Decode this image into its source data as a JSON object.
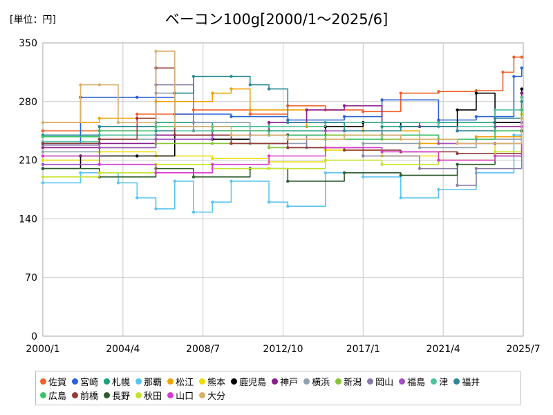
{
  "chart_data": {
    "type": "line",
    "title": "ベーコン100g[2000/1～2025/6]",
    "unit_label": "[単位：円]",
    "xlim": [
      "2000/1",
      "2025/7"
    ],
    "x_ticks": [
      "2000/1",
      "2004/4",
      "2008/7",
      "2012/10",
      "2017/1",
      "2021/4",
      "2025/7"
    ],
    "ylim": [
      0,
      350
    ],
    "y_ticks": [
      0,
      70,
      140,
      210,
      280,
      350
    ],
    "grid": true,
    "legend_position": "bottom",
    "series": [
      {
        "name": "佐賀",
        "color": "#f0602a",
        "points": [
          [
            "2000/1",
            245
          ],
          [
            "2003/1",
            245
          ],
          [
            "2005/1",
            265
          ],
          [
            "2008/1",
            270
          ],
          [
            "2011/1",
            265
          ],
          [
            "2013/1",
            275
          ],
          [
            "2015/1",
            270
          ],
          [
            "2017/1",
            268
          ],
          [
            "2019/1",
            290
          ],
          [
            "2021/1",
            292
          ],
          [
            "2023/1",
            293
          ],
          [
            "2024/6",
            315
          ],
          [
            "2025/1",
            333
          ],
          [
            "2025/6",
            333
          ]
        ]
      },
      {
        "name": "宮崎",
        "color": "#2a62d8",
        "points": [
          [
            "2000/1",
            230
          ],
          [
            "2002/1",
            285
          ],
          [
            "2005/1",
            285
          ],
          [
            "2007/1",
            265
          ],
          [
            "2010/1",
            262
          ],
          [
            "2013/1",
            258
          ],
          [
            "2016/1",
            262
          ],
          [
            "2018/1",
            282
          ],
          [
            "2021/1",
            258
          ],
          [
            "2023/1",
            262
          ],
          [
            "2025/1",
            310
          ],
          [
            "2025/6",
            320
          ]
        ]
      },
      {
        "name": "札幌",
        "color": "#1e9e7b",
        "points": [
          [
            "2000/1",
            240
          ],
          [
            "2003/1",
            250
          ],
          [
            "2006/1",
            255
          ],
          [
            "2009/1",
            250
          ],
          [
            "2012/1",
            245
          ],
          [
            "2015/1",
            240
          ],
          [
            "2018/1",
            250
          ],
          [
            "2021/1",
            255
          ],
          [
            "2024/1",
            255
          ],
          [
            "2025/6",
            290
          ]
        ]
      },
      {
        "name": "那覇",
        "color": "#5bc4f0",
        "points": [
          [
            "2000/1",
            183
          ],
          [
            "2002/1",
            195
          ],
          [
            "2004/1",
            183
          ],
          [
            "2005/1",
            165
          ],
          [
            "2006/1",
            152
          ],
          [
            "2007/1",
            185
          ],
          [
            "2008/1",
            148
          ],
          [
            "2009/1",
            160
          ],
          [
            "2010/1",
            185
          ],
          [
            "2012/1",
            160
          ],
          [
            "2013/1",
            155
          ],
          [
            "2015/1",
            195
          ],
          [
            "2017/1",
            190
          ],
          [
            "2019/1",
            165
          ],
          [
            "2021/1",
            175
          ],
          [
            "2023/1",
            195
          ],
          [
            "2025/1",
            240
          ],
          [
            "2025/6",
            250
          ]
        ]
      },
      {
        "name": "松江",
        "color": "#f0a20a",
        "points": [
          [
            "2000/1",
            255
          ],
          [
            "2003/1",
            260
          ],
          [
            "2006/1",
            280
          ],
          [
            "2009/1",
            290
          ],
          [
            "2010/1",
            295
          ],
          [
            "2011/1",
            270
          ],
          [
            "2014/1",
            250
          ],
          [
            "2017/1",
            245
          ],
          [
            "2020/1",
            230
          ],
          [
            "2023/1",
            238
          ],
          [
            "2025/6",
            285
          ]
        ]
      },
      {
        "name": "熊本",
        "color": "#ecdc0c",
        "points": [
          [
            "2000/1",
            210
          ],
          [
            "2003/1",
            220
          ],
          [
            "2006/1",
            215
          ],
          [
            "2009/1",
            212
          ],
          [
            "2012/1",
            208
          ],
          [
            "2015/1",
            222
          ],
          [
            "2018/1",
            215
          ],
          [
            "2021/1",
            210
          ],
          [
            "2024/1",
            230
          ],
          [
            "2025/6",
            265
          ]
        ]
      },
      {
        "name": "鹿児島",
        "color": "#000000",
        "points": [
          [
            "2000/1",
            200
          ],
          [
            "2002/1",
            215
          ],
          [
            "2005/1",
            215
          ],
          [
            "2007/1",
            240
          ],
          [
            "2009/1",
            235
          ],
          [
            "2011/1",
            230
          ],
          [
            "2013/1",
            240
          ],
          [
            "2015/1",
            250
          ],
          [
            "2017/1",
            255
          ],
          [
            "2019/1",
            250
          ],
          [
            "2021/1",
            250
          ],
          [
            "2022/1",
            270
          ],
          [
            "2023/1",
            290
          ],
          [
            "2024/1",
            255
          ],
          [
            "2025/6",
            295
          ]
        ]
      },
      {
        "name": "神戸",
        "color": "#8a1d8a",
        "points": [
          [
            "2000/1",
            225
          ],
          [
            "2003/1",
            230
          ],
          [
            "2006/1",
            240
          ],
          [
            "2009/1",
            245
          ],
          [
            "2012/1",
            255
          ],
          [
            "2014/1",
            270
          ],
          [
            "2016/1",
            275
          ],
          [
            "2018/1",
            255
          ],
          [
            "2020/1",
            250
          ],
          [
            "2022/1",
            245
          ],
          [
            "2024/1",
            250
          ],
          [
            "2025/6",
            290
          ]
        ]
      },
      {
        "name": "横浜",
        "color": "#8fa0ad",
        "points": [
          [
            "2000/1",
            220
          ],
          [
            "2003/1",
            235
          ],
          [
            "2006/1",
            290
          ],
          [
            "2008/1",
            255
          ],
          [
            "2011/1",
            230
          ],
          [
            "2014/1",
            225
          ],
          [
            "2017/1",
            230
          ],
          [
            "2020/1",
            225
          ],
          [
            "2023/1",
            235
          ],
          [
            "2025/6",
            270
          ]
        ]
      },
      {
        "name": "新潟",
        "color": "#88c43a",
        "points": [
          [
            "2000/1",
            215
          ],
          [
            "2003/1",
            225
          ],
          [
            "2006/1",
            230
          ],
          [
            "2009/1",
            230
          ],
          [
            "2012/1",
            225
          ],
          [
            "2015/1",
            240
          ],
          [
            "2018/1",
            235
          ],
          [
            "2021/1",
            235
          ],
          [
            "2024/1",
            245
          ],
          [
            "2025/6",
            260
          ]
        ]
      },
      {
        "name": "岡山",
        "color": "#8a7ca8",
        "points": [
          [
            "2000/1",
            228
          ],
          [
            "2003/1",
            240
          ],
          [
            "2006/1",
            300
          ],
          [
            "2008/1",
            245
          ],
          [
            "2011/1",
            240
          ],
          [
            "2014/1",
            225
          ],
          [
            "2017/1",
            215
          ],
          [
            "2020/1",
            200
          ],
          [
            "2022/1",
            180
          ],
          [
            "2023/1",
            200
          ],
          [
            "2025/6",
            255
          ]
        ]
      },
      {
        "name": "福島",
        "color": "#a050c0",
        "points": [
          [
            "2000/1",
            205
          ],
          [
            "2003/1",
            225
          ],
          [
            "2006/1",
            235
          ],
          [
            "2009/1",
            240
          ],
          [
            "2012/1",
            240
          ],
          [
            "2015/1",
            245
          ],
          [
            "2018/1",
            240
          ],
          [
            "2021/1",
            230
          ],
          [
            "2024/1",
            230
          ],
          [
            "2025/6",
            255
          ]
        ]
      },
      {
        "name": "津",
        "color": "#4ec29c",
        "points": [
          [
            "2000/1",
            232
          ],
          [
            "2003/1",
            240
          ],
          [
            "2006/1",
            245
          ],
          [
            "2009/1",
            250
          ],
          [
            "2012/1",
            250
          ],
          [
            "2015/1",
            255
          ],
          [
            "2018/1",
            255
          ],
          [
            "2021/1",
            250
          ],
          [
            "2024/1",
            270
          ],
          [
            "2025/6",
            285
          ]
        ]
      },
      {
        "name": "福井",
        "color": "#2a8a96",
        "points": [
          [
            "2000/1",
            240
          ],
          [
            "2003/1",
            250
          ],
          [
            "2006/1",
            245
          ],
          [
            "2007/1",
            290
          ],
          [
            "2008/1",
            310
          ],
          [
            "2010/1",
            310
          ],
          [
            "2011/1",
            300
          ],
          [
            "2012/1",
            295
          ],
          [
            "2013/1",
            255
          ],
          [
            "2016/1",
            245
          ],
          [
            "2019/1",
            250
          ],
          [
            "2022/1",
            245
          ],
          [
            "2024/1",
            260
          ],
          [
            "2025/6",
            280
          ]
        ]
      },
      {
        "name": "広島",
        "color": "#3ec26a",
        "points": [
          [
            "2000/1",
            238
          ],
          [
            "2003/1",
            245
          ],
          [
            "2006/1",
            250
          ],
          [
            "2009/1",
            245
          ],
          [
            "2012/1",
            240
          ],
          [
            "2015/1",
            235
          ],
          [
            "2018/1",
            240
          ],
          [
            "2021/1",
            235
          ],
          [
            "2024/1",
            245
          ],
          [
            "2025/6",
            270
          ]
        ]
      },
      {
        "name": "前橋",
        "color": "#943a3a",
        "points": [
          [
            "2000/1",
            230
          ],
          [
            "2003/1",
            235
          ],
          [
            "2005/1",
            260
          ],
          [
            "2006/1",
            320
          ],
          [
            "2007/1",
            240
          ],
          [
            "2010/1",
            230
          ],
          [
            "2013/1",
            225
          ],
          [
            "2016/1",
            222
          ],
          [
            "2019/1",
            220
          ],
          [
            "2022/1",
            218
          ],
          [
            "2025/6",
            245
          ]
        ]
      },
      {
        "name": "長野",
        "color": "#2e5c2e",
        "points": [
          [
            "2000/1",
            200
          ],
          [
            "2003/1",
            190
          ],
          [
            "2006/1",
            200
          ],
          [
            "2008/1",
            190
          ],
          [
            "2011/1",
            200
          ],
          [
            "2013/1",
            185
          ],
          [
            "2016/1",
            195
          ],
          [
            "2019/1",
            192
          ],
          [
            "2022/1",
            205
          ],
          [
            "2024/1",
            215
          ],
          [
            "2025/6",
            245
          ]
        ]
      },
      {
        "name": "秋田",
        "color": "#c8e22a",
        "points": [
          [
            "2000/1",
            190
          ],
          [
            "2003/1",
            195
          ],
          [
            "2006/1",
            205
          ],
          [
            "2009/1",
            200
          ],
          [
            "2012/1",
            200
          ],
          [
            "2015/1",
            210
          ],
          [
            "2018/1",
            205
          ],
          [
            "2021/1",
            210
          ],
          [
            "2024/1",
            220
          ],
          [
            "2025/6",
            250
          ]
        ]
      },
      {
        "name": "山口",
        "color": "#d83ad0",
        "points": [
          [
            "2000/1",
            215
          ],
          [
            "2003/1",
            205
          ],
          [
            "2006/1",
            195
          ],
          [
            "2009/1",
            205
          ],
          [
            "2012/1",
            215
          ],
          [
            "2015/1",
            225
          ],
          [
            "2018/1",
            220
          ],
          [
            "2021/1",
            210
          ],
          [
            "2024/1",
            215
          ],
          [
            "2025/6",
            250
          ]
        ]
      },
      {
        "name": "大分",
        "color": "#d8b070",
        "points": [
          [
            "2000/1",
            255
          ],
          [
            "2002/1",
            300
          ],
          [
            "2003/1",
            300
          ],
          [
            "2004/1",
            255
          ],
          [
            "2006/1",
            340
          ],
          [
            "2007/1",
            250
          ],
          [
            "2010/1",
            240
          ],
          [
            "2013/1",
            235
          ],
          [
            "2016/1",
            240
          ],
          [
            "2019/1",
            235
          ],
          [
            "2022/1",
            230
          ],
          [
            "2025/6",
            260
          ]
        ]
      }
    ]
  }
}
